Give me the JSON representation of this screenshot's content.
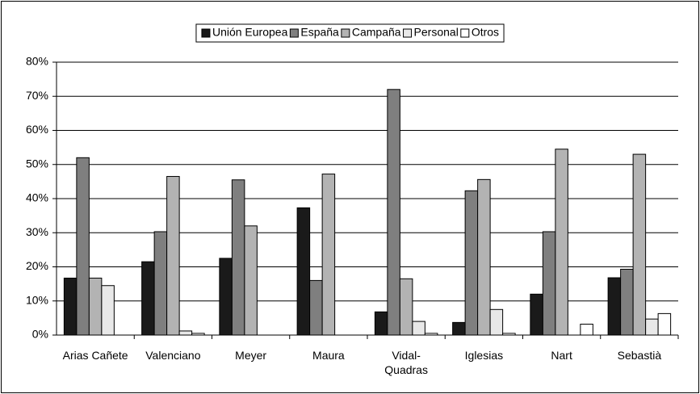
{
  "chart_data": {
    "type": "bar",
    "categories": [
      "Arias Cañete",
      "Valenciano",
      "Meyer",
      "Maura",
      "Vidal-Quadras",
      "Iglesias",
      "Nart",
      "Sebastià"
    ],
    "series": [
      {
        "name": "Unión Europea",
        "color": "#1a1a1a",
        "values": [
          16.7,
          21.5,
          22.5,
          37.3,
          6.8,
          3.7,
          12,
          16.8
        ]
      },
      {
        "name": "España",
        "color": "#7f7f7f",
        "values": [
          52,
          30.3,
          45.5,
          16,
          72,
          42.3,
          30.3,
          19.3
        ]
      },
      {
        "name": "Campaña",
        "color": "#b3b3b3",
        "values": [
          16.7,
          46.5,
          32,
          47.2,
          16.5,
          45.6,
          54.5,
          53
        ]
      },
      {
        "name": "Personal",
        "color": "#e8e8e8",
        "values": [
          14.5,
          1.2,
          0,
          0,
          4,
          7.5,
          0,
          4.7
        ]
      },
      {
        "name": "Otros",
        "color": "#ffffff",
        "values": [
          0,
          0.5,
          0,
          0,
          0.5,
          0.5,
          3.2,
          6.3
        ]
      }
    ],
    "ylim": [
      0,
      80
    ],
    "yticks": [
      {
        "value": 0,
        "label": "0%"
      },
      {
        "value": 10,
        "label": "10%"
      },
      {
        "value": 20,
        "label": "20%"
      },
      {
        "value": 30,
        "label": "30%"
      },
      {
        "value": 40,
        "label": "40%"
      },
      {
        "value": 50,
        "label": "50%"
      },
      {
        "value": 60,
        "label": "60%"
      },
      {
        "value": 70,
        "label": "70%"
      },
      {
        "value": 80,
        "label": "80%"
      }
    ],
    "grid": true,
    "legend": "top"
  }
}
